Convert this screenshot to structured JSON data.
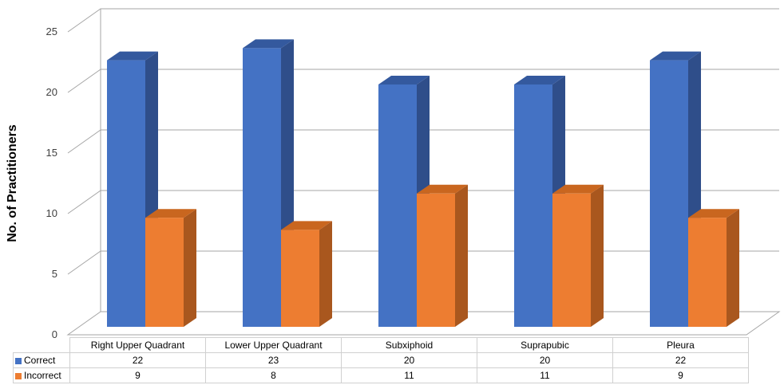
{
  "chart_data": {
    "type": "bar",
    "ylabel": "No. of Practitioners",
    "xlabel": "",
    "ylim": [
      0,
      25
    ],
    "yticks": [
      0,
      5,
      10,
      15,
      20,
      25
    ],
    "categories": [
      "Right Upper Quadrant",
      "Lower Upper Quadrant",
      "Subxiphoid",
      "Suprapubic",
      "Pleura"
    ],
    "series": [
      {
        "name": "Correct",
        "values": [
          22,
          23,
          20,
          20,
          22
        ],
        "color": "#4472C4"
      },
      {
        "name": "Incorrect",
        "values": [
          9,
          8,
          11,
          11,
          9
        ],
        "color": "#ED7D31"
      }
    ],
    "grid": true,
    "legend": "data-table",
    "style": "3d-column"
  }
}
